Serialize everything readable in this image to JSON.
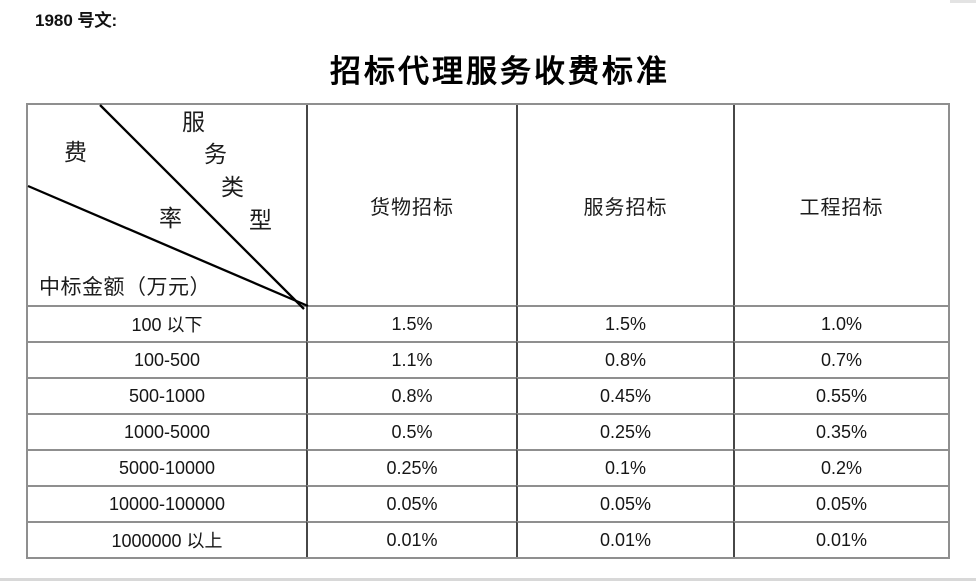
{
  "page": {
    "doc_ref": "1980 号文:",
    "title": "招标代理服务收费标准",
    "background": "#ffffff"
  },
  "table": {
    "corner": {
      "fee_rate_chars": [
        "费",
        "率"
      ],
      "service_type_chars": [
        "服",
        "务",
        "类",
        "型"
      ],
      "amount_axis_label": "中标金额（万元）"
    },
    "column_headers": [
      "货物招标",
      "服务招标",
      "工程招标"
    ],
    "rows": [
      {
        "amount": "100 以下",
        "values": [
          "1.5%",
          "1.5%",
          "1.0%"
        ]
      },
      {
        "amount": "100-500",
        "values": [
          "1.1%",
          "0.8%",
          "0.7%"
        ]
      },
      {
        "amount": "500-1000",
        "values": [
          "0.8%",
          "0.45%",
          "0.55%"
        ]
      },
      {
        "amount": "1000-5000",
        "values": [
          "0.5%",
          "0.25%",
          "0.35%"
        ]
      },
      {
        "amount": "5000-10000",
        "values": [
          "0.25%",
          "0.1%",
          "0.2%"
        ]
      },
      {
        "amount": "10000-100000",
        "values": [
          "0.05%",
          "0.05%",
          "0.05%"
        ]
      },
      {
        "amount": "1000000 以上",
        "values": [
          "0.01%",
          "0.01%",
          "0.01%"
        ]
      }
    ],
    "colors": {
      "horizontal_border": "#8f8f8f",
      "vertical_border": "#474747",
      "diagonal_line": "#000000",
      "text": "#1a1a1a"
    }
  }
}
